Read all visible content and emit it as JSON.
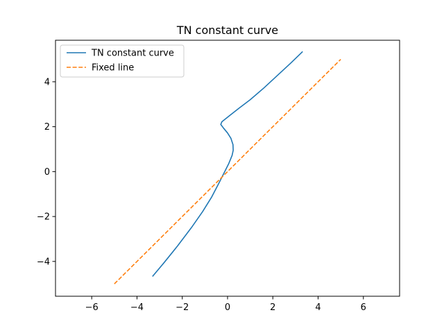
{
  "chart_data": {
    "type": "line",
    "title": "TN constant curve",
    "xlabel": "",
    "ylabel": "",
    "xlim": [
      -7.6,
      7.6
    ],
    "ylim": [
      -5.55,
      5.85
    ],
    "x_ticks": [
      -6,
      -4,
      -2,
      0,
      2,
      4,
      6
    ],
    "y_ticks": [
      -4,
      -2,
      0,
      2,
      4
    ],
    "x_tick_labels": [
      "−6",
      "−4",
      "−2",
      "0",
      "2",
      "4",
      "6"
    ],
    "y_tick_labels": [
      "−4",
      "−2",
      "0",
      "2",
      "4"
    ],
    "grid": false,
    "legend_position": "upper left",
    "series": [
      {
        "name": "TN constant curve",
        "color": "#1f77b4",
        "style": "solid",
        "points": [
          [
            -3.3,
            -4.65
          ],
          [
            -2.8,
            -4.05
          ],
          [
            -2.2,
            -3.3
          ],
          [
            -1.6,
            -2.5
          ],
          [
            -1.1,
            -1.78
          ],
          [
            -0.7,
            -1.13
          ],
          [
            -0.4,
            -0.55
          ],
          [
            -0.15,
            -0.05
          ],
          [
            0.05,
            0.35
          ],
          [
            0.2,
            0.72
          ],
          [
            0.25,
            0.95
          ],
          [
            0.24,
            1.2
          ],
          [
            0.15,
            1.48
          ],
          [
            0.0,
            1.72
          ],
          [
            -0.18,
            1.94
          ],
          [
            -0.3,
            2.1
          ],
          [
            -0.25,
            2.22
          ],
          [
            0.1,
            2.5
          ],
          [
            0.5,
            2.82
          ],
          [
            1.0,
            3.2
          ],
          [
            1.6,
            3.72
          ],
          [
            2.2,
            4.28
          ],
          [
            2.8,
            4.84
          ],
          [
            3.3,
            5.33
          ]
        ]
      },
      {
        "name": "Fixed line",
        "color": "#ff7f0e",
        "style": "dashed",
        "points": [
          [
            -5,
            -5
          ],
          [
            5,
            5
          ]
        ]
      }
    ]
  }
}
